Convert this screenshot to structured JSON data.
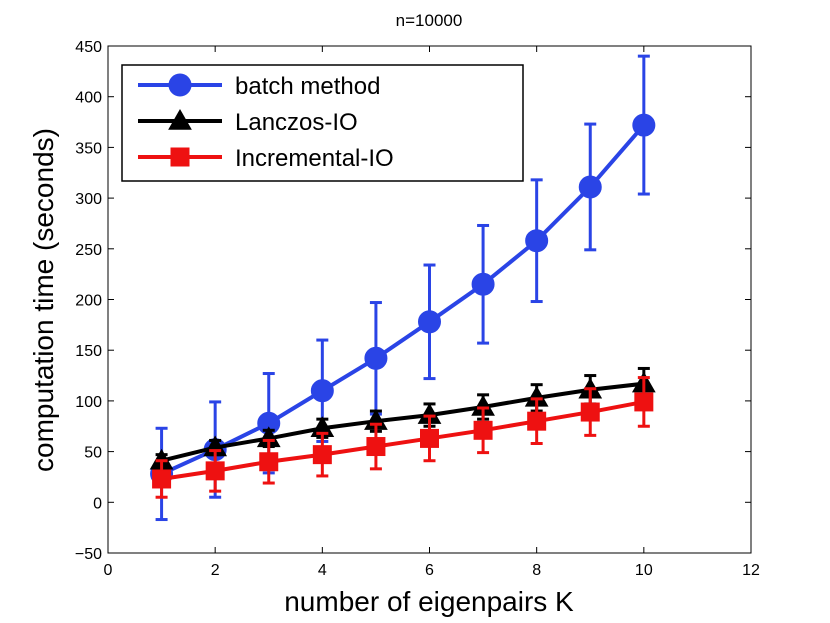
{
  "chart_data": {
    "type": "line",
    "title": "n=10000",
    "xlabel": "number of eigenpairs K",
    "ylabel": "computation time (seconds)",
    "xlim": [
      0,
      12
    ],
    "ylim": [
      -50,
      450
    ],
    "xticks": [
      0,
      2,
      4,
      6,
      8,
      10,
      12
    ],
    "yticks": [
      -50,
      0,
      50,
      100,
      150,
      200,
      250,
      300,
      350,
      400,
      450
    ],
    "legend_position": "top-left",
    "grid": false,
    "series": [
      {
        "name": "batch method",
        "color": "#2a44e6",
        "marker": "circle",
        "x": [
          1,
          2,
          3,
          4,
          5,
          6,
          7,
          8,
          9,
          10
        ],
        "y": [
          28,
          52,
          78,
          110,
          142,
          178,
          215,
          258,
          311,
          372
        ],
        "err": [
          45,
          47,
          49,
          50,
          55,
          56,
          58,
          60,
          62,
          68
        ]
      },
      {
        "name": "Lanczos-IO",
        "color": "#000000",
        "marker": "triangle",
        "x": [
          1,
          2,
          3,
          4,
          5,
          6,
          7,
          8,
          9,
          10
        ],
        "y": [
          41,
          54,
          63,
          73,
          80,
          86,
          94,
          103,
          111,
          117
        ],
        "err": [
          6,
          7,
          8,
          9,
          10,
          11,
          12,
          13,
          14,
          15
        ]
      },
      {
        "name": "Incremental-IO",
        "color": "#ee1111",
        "marker": "square",
        "x": [
          1,
          2,
          3,
          4,
          5,
          6,
          7,
          8,
          9,
          10
        ],
        "y": [
          23,
          31,
          40,
          47,
          55,
          63,
          71,
          80,
          89,
          99
        ],
        "err": [
          18,
          20,
          21,
          21,
          22,
          22,
          22,
          22,
          23,
          24
        ]
      }
    ]
  }
}
